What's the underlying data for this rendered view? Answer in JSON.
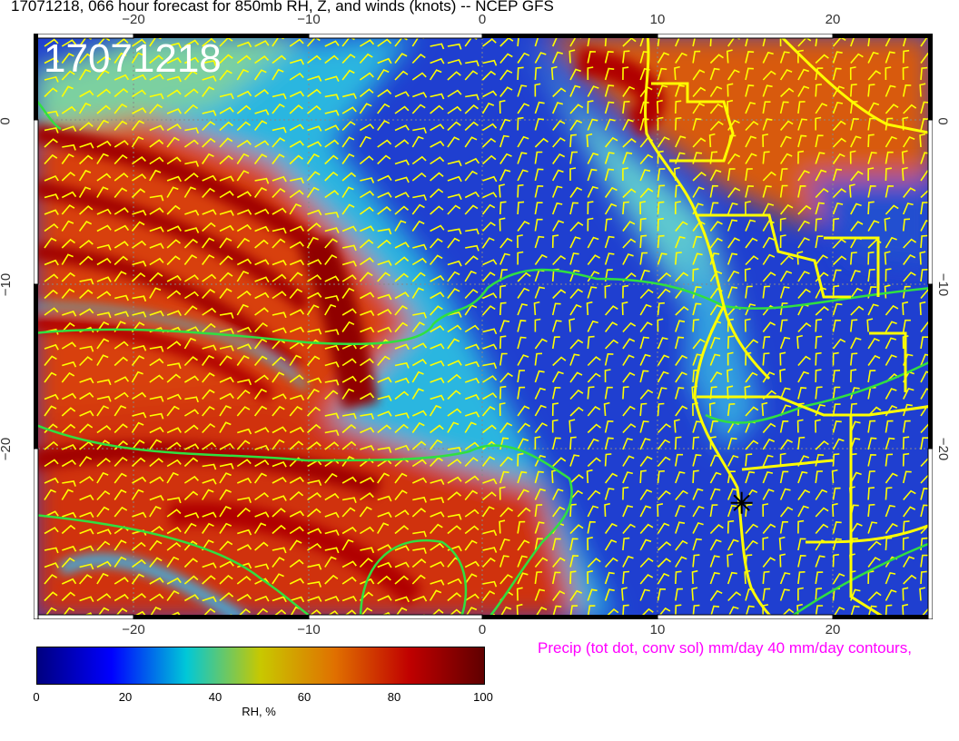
{
  "title": "17071218, 066 hour forecast for 850mb RH, Z, and winds (knots)  -- NCEP GFS",
  "timestamp_label": "17071218",
  "x_ticks": [
    "−20",
    "−10",
    "0",
    "10",
    "20"
  ],
  "y_ticks": [
    "0",
    "−10",
    "−20"
  ],
  "precip_label": "Precip (tot dot, conv sol) mm/day 40 mm/day contours,",
  "colorbar": {
    "title": "RH, %",
    "labels": [
      "0",
      "20",
      "40",
      "60",
      "80",
      "100"
    ],
    "range": [
      0,
      100
    ],
    "colors": [
      "#000080",
      "#0000ff",
      "#00c8d8",
      "#c8c800",
      "#e07000",
      "#c00000",
      "#600000"
    ]
  },
  "map": {
    "lon_range": [
      -25.7,
      25.6
    ],
    "lat_range": [
      -30,
      5.2
    ],
    "wind_barb_color": "#ffff00",
    "coastline_color": "#ffff00",
    "contour_color": "#00ff40",
    "marker": {
      "symbol": "asterisk",
      "lon": 14.7,
      "lat": -23
    }
  }
}
